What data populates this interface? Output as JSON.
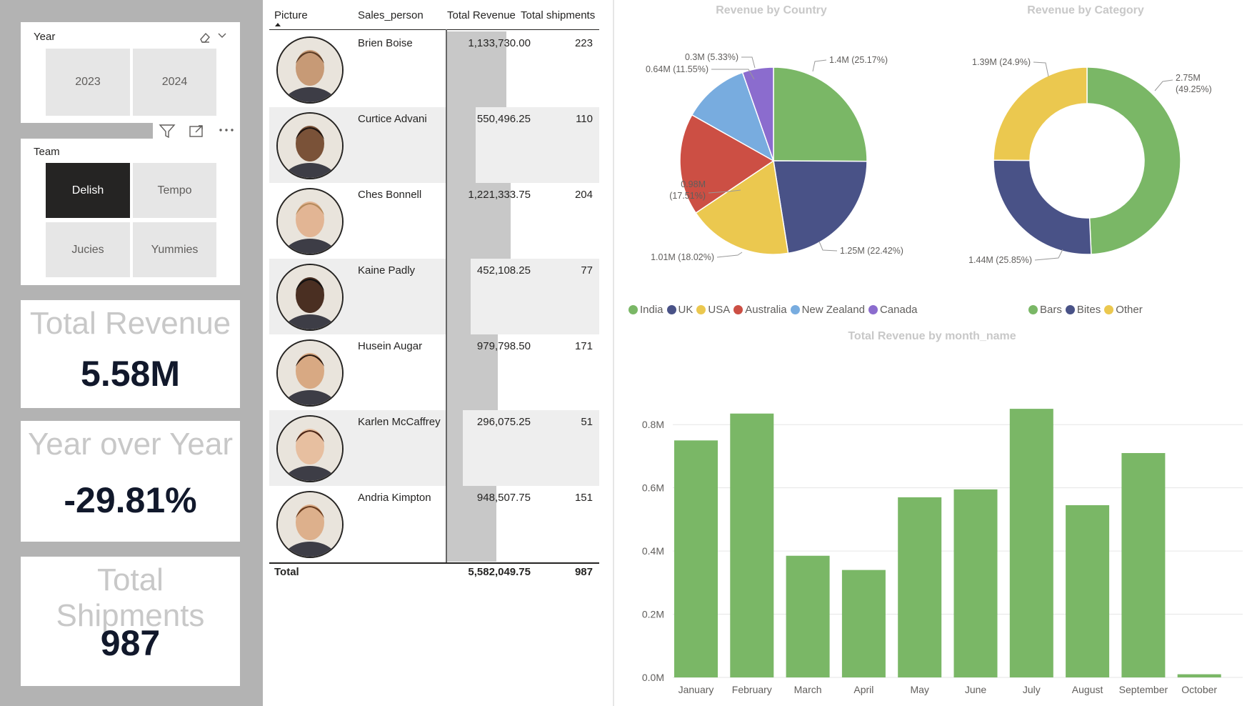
{
  "year_slicer": {
    "title": "Year",
    "options": [
      "2023",
      "2024"
    ]
  },
  "team_slicer": {
    "title": "Team",
    "options": [
      "Delish",
      "Tempo",
      "Jucies",
      "Yummies"
    ],
    "selected": "Delish"
  },
  "kpis": [
    {
      "label": "Total Revenue",
      "value": "5.58M"
    },
    {
      "label": "Year over Year",
      "value": "-29.81%"
    },
    {
      "label": "Total Shipments",
      "value": "987"
    }
  ],
  "table": {
    "headers": [
      "Picture",
      "Sales_person",
      "Total Revenue",
      "Total shipments"
    ],
    "rows": [
      {
        "name": "Brien Boise",
        "revenue": "1,133,730.00",
        "revenue_value": 1133730.0,
        "shipments": "223"
      },
      {
        "name": "Curtice Advani",
        "revenue": "550,496.25",
        "revenue_value": 550496.25,
        "shipments": "110"
      },
      {
        "name": "Ches Bonnell",
        "revenue": "1,221,333.75",
        "revenue_value": 1221333.75,
        "shipments": "204"
      },
      {
        "name": "Kaine Padly",
        "revenue": "452,108.25",
        "revenue_value": 452108.25,
        "shipments": "77"
      },
      {
        "name": "Husein Augar",
        "revenue": "979,798.50",
        "revenue_value": 979798.5,
        "shipments": "171"
      },
      {
        "name": "Karlen McCaffrey",
        "revenue": "296,075.25",
        "revenue_value": 296075.25,
        "shipments": "51"
      },
      {
        "name": "Andria Kimpton",
        "revenue": "948,507.75",
        "revenue_value": 948507.75,
        "shipments": "151"
      }
    ],
    "total": {
      "label": "Total",
      "revenue": "5,582,049.75",
      "shipments": "987"
    }
  },
  "chart_data": [
    {
      "type": "pie",
      "title": "Revenue by Country",
      "categories": [
        "India",
        "UK",
        "USA",
        "Australia",
        "New Zealand",
        "Canada"
      ],
      "values": [
        1.4,
        1.25,
        1.01,
        0.98,
        0.64,
        0.3
      ],
      "labels": [
        "1.4M (25.17%)",
        "1.25M (22.42%)",
        "1.01M (18.02%)",
        "0.98M (17.51%)",
        "0.64M (11.55%)",
        "0.3M (5.33%)"
      ],
      "colors": [
        "#7ab766",
        "#495287",
        "#ebc84f",
        "#cc4f44",
        "#78acdf",
        "#8b6cce"
      ],
      "legend": "bottom-left"
    },
    {
      "type": "pie",
      "title": "Revenue by Category",
      "categories": [
        "Bars",
        "Bites",
        "Other"
      ],
      "values": [
        2.75,
        1.44,
        1.39
      ],
      "labels": [
        "2.75M (49.25%)",
        "1.44M (25.85%)",
        "1.39M (24.9%)"
      ],
      "colors": [
        "#7ab766",
        "#495287",
        "#ebc84f"
      ],
      "legend": "bottom-left"
    },
    {
      "type": "bar",
      "title": "Total Revenue by month_name",
      "categories": [
        "January",
        "February",
        "March",
        "April",
        "May",
        "June",
        "July",
        "August",
        "September",
        "October"
      ],
      "values": [
        0.75,
        0.835,
        0.385,
        0.34,
        0.57,
        0.595,
        0.85,
        0.545,
        0.71,
        0.01
      ],
      "yticks": [
        "0.0M",
        "0.2M",
        "0.4M",
        "0.6M",
        "0.8M"
      ],
      "ylim": [
        0,
        0.9
      ],
      "color": "#7ab766",
      "grid": true
    }
  ]
}
